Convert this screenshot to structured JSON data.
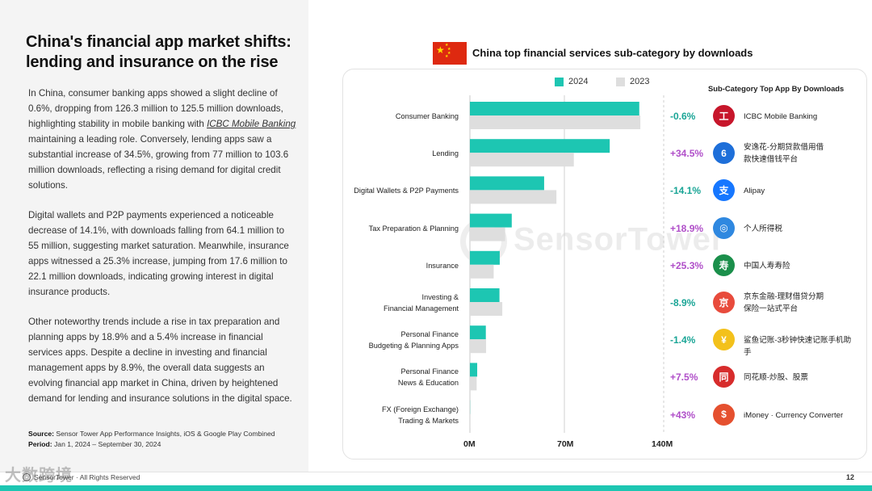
{
  "page": {
    "title": "China's financial app market shifts: lending and insurance on the rise",
    "paragraph1_a": "In China, consumer banking apps showed a slight decline of 0.6%, dropping from 126.3 million to 125.5 million downloads, highlighting stability in mobile banking with ",
    "paragraph1_link": "ICBC Mobile Banking",
    "paragraph1_b": " maintaining a leading role. Conversely, lending apps saw a substantial increase of 34.5%, growing from 77 million to 103.6 million downloads, reflecting a rising demand for digital credit solutions.",
    "paragraph2": "Digital wallets and P2P payments experienced a noticeable decrease of 14.1%, with downloads falling from 64.1 million to 55 million, suggesting market saturation. Meanwhile, insurance apps witnessed a 25.3% increase, jumping from 17.6 million to 22.1 million downloads, indicating growing interest in digital insurance products.",
    "paragraph3": "Other noteworthy trends include a rise in tax preparation and planning apps by 18.9% and a 5.4% increase in financial services apps. Despite a decline in investing and financial management apps by 8.9%, the overall data suggests an evolving financial app market in China, driven by heightened demand for lending and insurance solutions in the digital space.",
    "source_label": "Source:",
    "source_text": " Sensor Tower App Performance  Insights, iOS & Google Play Combined",
    "period_label": "Period:",
    "period_text": " Jan 1, 2024 – September 30, 2024",
    "footer_logo": "SensorTower · All Rights Reserved",
    "watermark": "大数跨境",
    "page_number": "12",
    "chart_watermark": "SensorTower"
  },
  "colors": {
    "series_2024": "#1dc6b2",
    "series_2023": "#dedede",
    "negative": "#1aa596",
    "positive": "#b04fc9"
  },
  "right_panel": {
    "header": "Sub-Category Top App By Downloads",
    "apps": [
      {
        "change": "-0.6%",
        "sign": "neg",
        "icon": "icbc-icon",
        "glyph": "工",
        "bg": "#c7162b",
        "name": "ICBC Mobile Banking"
      },
      {
        "change": "+34.5%",
        "sign": "pos",
        "icon": "lending-app-icon",
        "glyph": "6",
        "bg": "#1e6fd9",
        "name": "安逸花-分期贷款借用借款快速借钱平台"
      },
      {
        "change": "-14.1%",
        "sign": "neg",
        "icon": "alipay-icon",
        "glyph": "支",
        "bg": "#1677ff",
        "name": "Alipay"
      },
      {
        "change": "+18.9%",
        "sign": "pos",
        "icon": "tax-app-icon",
        "glyph": "◎",
        "bg": "#2f88e0",
        "name": "个人所得税"
      },
      {
        "change": "+25.3%",
        "sign": "pos",
        "icon": "china-life-icon",
        "glyph": "寿",
        "bg": "#1b8f4b",
        "name": "中国人寿寿险"
      },
      {
        "change": "-8.9%",
        "sign": "neg",
        "icon": "jd-finance-icon",
        "glyph": "京",
        "bg": "#e84b3c",
        "name": "京东金融-理财借贷分期保险一站式平台"
      },
      {
        "change": "-1.4%",
        "sign": "neg",
        "icon": "shark-ledger-icon",
        "glyph": "¥",
        "bg": "#f3c11b",
        "name": "鲨鱼记账-3秒钟快速记账手机助手"
      },
      {
        "change": "+7.5%",
        "sign": "pos",
        "icon": "tonghuashun-icon",
        "glyph": "同",
        "bg": "#d72c2c",
        "name": "同花顺-炒股、股票"
      },
      {
        "change": "+43%",
        "sign": "pos",
        "icon": "imoney-icon",
        "glyph": "$",
        "bg": "#e5502f",
        "name": "iMoney · Currency Converter"
      }
    ]
  },
  "chart_data": {
    "type": "bar",
    "orientation": "horizontal",
    "title": "China top financial services sub-category by downloads",
    "categories": [
      "Consumer Banking",
      "Lending",
      "Digital Wallets & P2P Payments",
      "Tax Preparation & Planning",
      "Insurance",
      "Investing & Financial Management",
      "Personal Finance Budgeting & Planning Apps",
      "Personal Finance News & Education",
      "FX (Foreign Exchange) Trading & Markets"
    ],
    "category_lines": [
      [
        "Consumer Banking"
      ],
      [
        "Lending"
      ],
      [
        "Digital Wallets & P2P Payments"
      ],
      [
        "Tax Preparation & Planning"
      ],
      [
        "Insurance"
      ],
      [
        "Investing &",
        "Financial Management"
      ],
      [
        "Personal Finance",
        "Budgeting & Planning Apps"
      ],
      [
        "Personal Finance",
        "News & Education"
      ],
      [
        "FX (Foreign Exchange)",
        "Trading & Markets"
      ]
    ],
    "series": [
      {
        "name": "2024",
        "values": [
          125.5,
          103.6,
          55.0,
          31.0,
          22.1,
          21.9,
          11.8,
          5.4,
          0.1
        ]
      },
      {
        "name": "2023",
        "values": [
          126.3,
          77.0,
          64.1,
          26.1,
          17.6,
          24.0,
          12.0,
          5.0,
          0.07
        ]
      }
    ],
    "xlim": [
      0,
      140
    ],
    "xticks": [
      "0M",
      "70M",
      "140M"
    ],
    "legend_position": "top"
  }
}
